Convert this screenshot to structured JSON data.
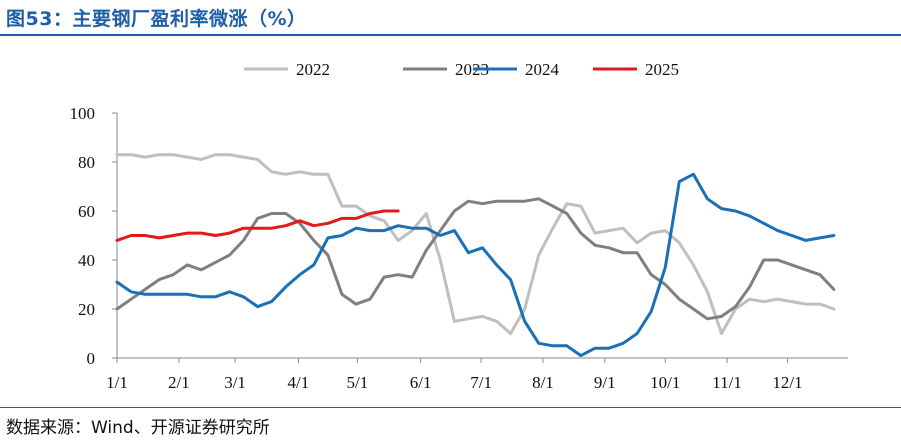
{
  "header": {
    "title": "图53：主要钢厂盈利率微涨（%）"
  },
  "footer": {
    "source": "数据来源：Wind、开源证券研究所"
  },
  "chart_data": {
    "type": "line",
    "title": "主要钢厂盈利率微涨（%）",
    "xlabel": "",
    "ylabel": "",
    "ylim": [
      0,
      100
    ],
    "yticks": [
      0,
      20,
      40,
      60,
      80,
      100
    ],
    "xlim": [
      0,
      52
    ],
    "xticks": [
      {
        "label": "1/1",
        "week": 0
      },
      {
        "label": "2/1",
        "week": 4.4
      },
      {
        "label": "3/1",
        "week": 8.4
      },
      {
        "label": "4/1",
        "week": 12.9
      },
      {
        "label": "5/1",
        "week": 17.1
      },
      {
        "label": "6/1",
        "week": 21.6
      },
      {
        "label": "7/1",
        "week": 25.9
      },
      {
        "label": "8/1",
        "week": 30.3
      },
      {
        "label": "9/1",
        "week": 34.7
      },
      {
        "label": "10/1",
        "week": 39.0
      },
      {
        "label": "11/1",
        "week": 43.4
      },
      {
        "label": "12/1",
        "week": 47.7
      }
    ],
    "grid": false,
    "legend_position": "top",
    "series": [
      {
        "name": "2022",
        "color": "#bfbfbf",
        "values": [
          [
            0,
            83
          ],
          [
            1,
            83
          ],
          [
            2,
            82
          ],
          [
            3,
            83
          ],
          [
            4,
            83
          ],
          [
            5,
            82
          ],
          [
            6,
            81
          ],
          [
            7,
            83
          ],
          [
            8,
            83
          ],
          [
            9,
            82
          ],
          [
            10,
            81
          ],
          [
            11,
            76
          ],
          [
            12,
            75
          ],
          [
            13,
            76
          ],
          [
            14,
            75
          ],
          [
            15,
            75
          ],
          [
            16,
            62
          ],
          [
            17,
            62
          ],
          [
            18,
            58
          ],
          [
            19,
            56
          ],
          [
            20,
            48
          ],
          [
            21,
            52
          ],
          [
            22,
            59
          ],
          [
            23,
            40
          ],
          [
            24,
            15
          ],
          [
            25,
            16
          ],
          [
            26,
            17
          ],
          [
            27,
            15
          ],
          [
            28,
            10
          ],
          [
            29,
            20
          ],
          [
            30,
            42
          ],
          [
            31,
            53
          ],
          [
            32,
            63
          ],
          [
            33,
            62
          ],
          [
            34,
            51
          ],
          [
            35,
            52
          ],
          [
            36,
            53
          ],
          [
            37,
            47
          ],
          [
            38,
            51
          ],
          [
            39,
            52
          ],
          [
            40,
            47
          ],
          [
            41,
            38
          ],
          [
            42,
            27
          ],
          [
            43,
            10
          ],
          [
            44,
            20
          ],
          [
            45,
            24
          ],
          [
            46,
            23
          ],
          [
            47,
            24
          ],
          [
            48,
            23
          ],
          [
            49,
            22
          ],
          [
            50,
            22
          ],
          [
            51,
            20
          ]
        ]
      },
      {
        "name": "2023",
        "color": "#7f7f7f",
        "values": [
          [
            0,
            20
          ],
          [
            1,
            24
          ],
          [
            2,
            28
          ],
          [
            3,
            32
          ],
          [
            4,
            34
          ],
          [
            5,
            38
          ],
          [
            6,
            36
          ],
          [
            7,
            39
          ],
          [
            8,
            42
          ],
          [
            9,
            48
          ],
          [
            10,
            57
          ],
          [
            11,
            59
          ],
          [
            12,
            59
          ],
          [
            13,
            55
          ],
          [
            14,
            48
          ],
          [
            15,
            42
          ],
          [
            16,
            26
          ],
          [
            17,
            22
          ],
          [
            18,
            24
          ],
          [
            19,
            33
          ],
          [
            20,
            34
          ],
          [
            21,
            33
          ],
          [
            22,
            44
          ],
          [
            23,
            52
          ],
          [
            24,
            60
          ],
          [
            25,
            64
          ],
          [
            26,
            63
          ],
          [
            27,
            64
          ],
          [
            28,
            64
          ],
          [
            29,
            64
          ],
          [
            30,
            65
          ],
          [
            31,
            62
          ],
          [
            32,
            59
          ],
          [
            33,
            51
          ],
          [
            34,
            46
          ],
          [
            35,
            45
          ],
          [
            36,
            43
          ],
          [
            37,
            43
          ],
          [
            38,
            34
          ],
          [
            39,
            30
          ],
          [
            40,
            24
          ],
          [
            41,
            20
          ],
          [
            42,
            16
          ],
          [
            43,
            17
          ],
          [
            44,
            21
          ],
          [
            45,
            29
          ],
          [
            46,
            40
          ],
          [
            47,
            40
          ],
          [
            48,
            38
          ],
          [
            49,
            36
          ],
          [
            50,
            34
          ],
          [
            51,
            28
          ]
        ]
      },
      {
        "name": "2024",
        "color": "#1a6fb6",
        "values": [
          [
            0,
            31
          ],
          [
            1,
            27
          ],
          [
            2,
            26
          ],
          [
            3,
            26
          ],
          [
            4,
            26
          ],
          [
            5,
            26
          ],
          [
            6,
            25
          ],
          [
            7,
            25
          ],
          [
            8,
            27
          ],
          [
            9,
            25
          ],
          [
            10,
            21
          ],
          [
            11,
            23
          ],
          [
            12,
            29
          ],
          [
            13,
            34
          ],
          [
            14,
            38
          ],
          [
            15,
            49
          ],
          [
            16,
            50
          ],
          [
            17,
            53
          ],
          [
            18,
            52
          ],
          [
            19,
            52
          ],
          [
            20,
            54
          ],
          [
            21,
            53
          ],
          [
            22,
            53
          ],
          [
            23,
            50
          ],
          [
            24,
            52
          ],
          [
            25,
            43
          ],
          [
            26,
            45
          ],
          [
            27,
            38
          ],
          [
            28,
            32
          ],
          [
            29,
            15
          ],
          [
            30,
            6
          ],
          [
            31,
            5
          ],
          [
            32,
            5
          ],
          [
            33,
            1
          ],
          [
            34,
            4
          ],
          [
            35,
            4
          ],
          [
            36,
            6
          ],
          [
            37,
            10
          ],
          [
            38,
            19
          ],
          [
            39,
            37
          ],
          [
            40,
            72
          ],
          [
            41,
            75
          ],
          [
            42,
            65
          ],
          [
            43,
            61
          ],
          [
            44,
            60
          ],
          [
            45,
            58
          ],
          [
            46,
            55
          ],
          [
            47,
            52
          ],
          [
            48,
            50
          ],
          [
            49,
            48
          ],
          [
            50,
            49
          ],
          [
            51,
            50
          ]
        ]
      },
      {
        "name": "2025",
        "color": "#e31a1c",
        "values": [
          [
            0,
            48
          ],
          [
            1,
            50
          ],
          [
            2,
            50
          ],
          [
            3,
            49
          ],
          [
            4,
            50
          ],
          [
            5,
            51
          ],
          [
            6,
            51
          ],
          [
            7,
            50
          ],
          [
            8,
            51
          ],
          [
            9,
            53
          ],
          [
            10,
            53
          ],
          [
            11,
            53
          ],
          [
            12,
            54
          ],
          [
            13,
            56
          ],
          [
            14,
            54
          ],
          [
            15,
            55
          ],
          [
            16,
            57
          ],
          [
            17,
            57
          ],
          [
            18,
            59
          ],
          [
            19,
            60
          ],
          [
            20,
            60
          ]
        ]
      }
    ]
  }
}
